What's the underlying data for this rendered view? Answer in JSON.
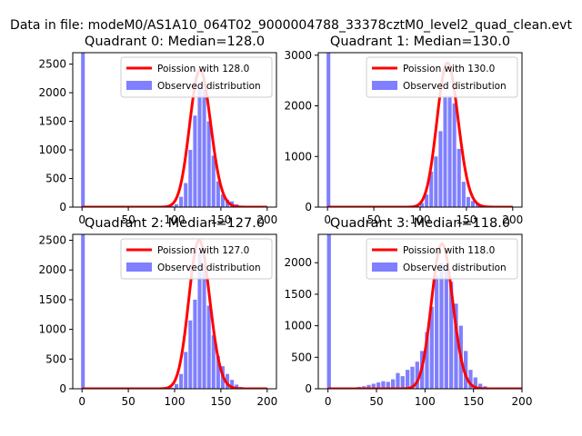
{
  "figure": {
    "suptitle": "Data in file: modeM0/AS1A10_064T02_9000004788_33378cztM0_level2_quad_clean.evt"
  },
  "colors": {
    "hist": "#0000ff",
    "poisson": "#ff0000"
  },
  "chart_data": [
    {
      "type": "bar",
      "title": "Quadrant 0: Median=128.0",
      "xlim": [
        -10,
        210
      ],
      "ylim": [
        0,
        2700
      ],
      "xticks": [
        0,
        50,
        100,
        150,
        200
      ],
      "yticks": [
        0,
        500,
        1000,
        1500,
        2000,
        2500
      ],
      "legend": [
        "Poission with 128.0",
        "Observed distribution"
      ],
      "poisson_mean": 128.0,
      "poisson_peak": 2400,
      "hist": [
        [
          -1,
          4,
          2700
        ],
        [
          90,
          4,
          10
        ],
        [
          95,
          4,
          20
        ],
        [
          100,
          4,
          50
        ],
        [
          105,
          4,
          180
        ],
        [
          110,
          4,
          420
        ],
        [
          115,
          4,
          1000
        ],
        [
          120,
          4,
          1600
        ],
        [
          125,
          4,
          2100
        ],
        [
          130,
          4,
          2050
        ],
        [
          135,
          4,
          1500
        ],
        [
          140,
          4,
          900
        ],
        [
          145,
          4,
          450
        ],
        [
          150,
          4,
          220
        ],
        [
          155,
          4,
          130
        ],
        [
          160,
          4,
          100
        ],
        [
          165,
          4,
          50
        ],
        [
          170,
          4,
          20
        ],
        [
          175,
          4,
          10
        ]
      ]
    },
    {
      "type": "bar",
      "title": "Quadrant 1: Median=130.0",
      "xlim": [
        -10,
        210
      ],
      "ylim": [
        0,
        3050
      ],
      "xticks": [
        0,
        50,
        100,
        150,
        200
      ],
      "yticks": [
        0,
        1000,
        2000,
        3000
      ],
      "legend": [
        "Poission with 130.0",
        "Observed distribution"
      ],
      "poisson_mean": 130.0,
      "poisson_peak": 2850,
      "hist": [
        [
          -1,
          4,
          3050
        ],
        [
          85,
          4,
          10
        ],
        [
          90,
          4,
          20
        ],
        [
          95,
          4,
          30
        ],
        [
          100,
          4,
          80
        ],
        [
          105,
          4,
          250
        ],
        [
          110,
          4,
          700
        ],
        [
          115,
          4,
          1000
        ],
        [
          120,
          4,
          1500
        ],
        [
          125,
          4,
          2200
        ],
        [
          130,
          4,
          2200
        ],
        [
          135,
          4,
          2050
        ],
        [
          140,
          4,
          1150
        ],
        [
          145,
          4,
          500
        ],
        [
          150,
          4,
          200
        ],
        [
          155,
          4,
          120
        ],
        [
          160,
          4,
          80
        ],
        [
          165,
          4,
          40
        ],
        [
          170,
          4,
          20
        ]
      ]
    },
    {
      "type": "bar",
      "title": "Quadrant 2: Median=127.0",
      "xlim": [
        -10,
        210
      ],
      "ylim": [
        0,
        2600
      ],
      "xticks": [
        0,
        50,
        100,
        150,
        200
      ],
      "yticks": [
        0,
        500,
        1000,
        1500,
        2000,
        2500
      ],
      "legend": [
        "Poission with 127.0",
        "Observed distribution"
      ],
      "poisson_mean": 127.0,
      "poisson_peak": 2500,
      "hist": [
        [
          -1,
          4,
          2600
        ],
        [
          90,
          4,
          10
        ],
        [
          95,
          4,
          20
        ],
        [
          100,
          4,
          80
        ],
        [
          105,
          4,
          250
        ],
        [
          110,
          4,
          620
        ],
        [
          115,
          4,
          1150
        ],
        [
          120,
          4,
          1500
        ],
        [
          125,
          4,
          2300
        ],
        [
          130,
          4,
          2100
        ],
        [
          135,
          4,
          1400
        ],
        [
          140,
          4,
          900
        ],
        [
          145,
          4,
          550
        ],
        [
          150,
          4,
          380
        ],
        [
          155,
          4,
          250
        ],
        [
          160,
          4,
          150
        ],
        [
          165,
          4,
          70
        ],
        [
          170,
          4,
          30
        ],
        [
          175,
          4,
          10
        ]
      ]
    },
    {
      "type": "bar",
      "title": "Quadrant 3: Median=118.0",
      "xlim": [
        -10,
        200
      ],
      "ylim": [
        0,
        2450
      ],
      "xticks": [
        0,
        50,
        100,
        150,
        200
      ],
      "yticks": [
        0,
        500,
        1000,
        1500,
        2000
      ],
      "legend": [
        "Poission with 118.0",
        "Observed distribution"
      ],
      "poisson_mean": 118.0,
      "poisson_peak": 2300,
      "hist": [
        [
          -1,
          4,
          2450
        ],
        [
          30,
          4,
          30
        ],
        [
          35,
          4,
          40
        ],
        [
          40,
          4,
          60
        ],
        [
          45,
          4,
          80
        ],
        [
          50,
          4,
          100
        ],
        [
          55,
          4,
          120
        ],
        [
          60,
          4,
          110
        ],
        [
          65,
          4,
          150
        ],
        [
          70,
          4,
          250
        ],
        [
          75,
          4,
          200
        ],
        [
          80,
          4,
          300
        ],
        [
          85,
          4,
          350
        ],
        [
          90,
          4,
          430
        ],
        [
          95,
          4,
          600
        ],
        [
          100,
          4,
          900
        ],
        [
          105,
          4,
          1300
        ],
        [
          110,
          4,
          1800
        ],
        [
          115,
          4,
          2000
        ],
        [
          120,
          4,
          1900
        ],
        [
          125,
          4,
          1700
        ],
        [
          130,
          4,
          1350
        ],
        [
          135,
          4,
          1000
        ],
        [
          140,
          4,
          600
        ],
        [
          145,
          4,
          300
        ],
        [
          150,
          4,
          180
        ],
        [
          155,
          4,
          80
        ],
        [
          160,
          4,
          40
        ],
        [
          165,
          4,
          20
        ]
      ]
    }
  ]
}
